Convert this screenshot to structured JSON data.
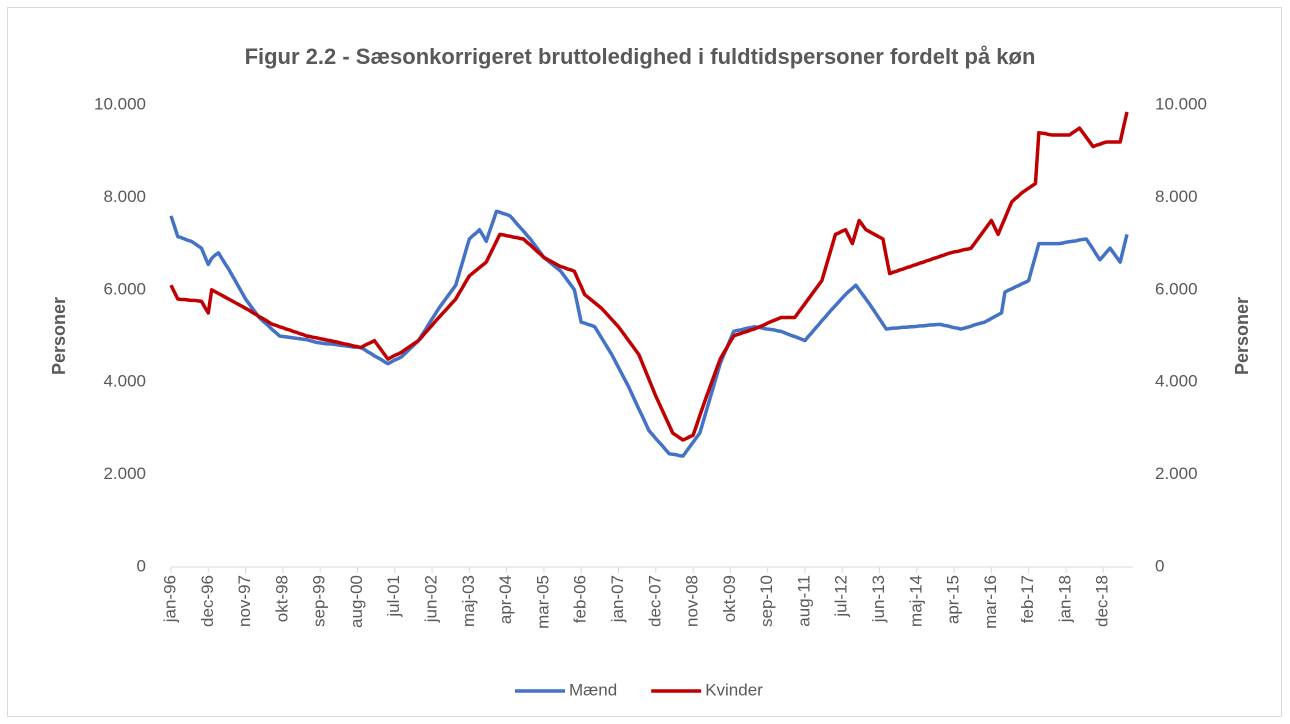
{
  "chart_data": {
    "type": "line",
    "title": "Figur 2.2 - Sæsonkorrigeret bruttoledighed i fuldtidspersoner fordelt på køn",
    "y_label": "Personer",
    "y2_label": "Personer",
    "categories": [
      "jan-96",
      null,
      null,
      null,
      null,
      null,
      null,
      null,
      null,
      null,
      null,
      "dec-96",
      null,
      null,
      null,
      null,
      null,
      null,
      null,
      null,
      null,
      null,
      "nov-97",
      null,
      null,
      null,
      null,
      null,
      null,
      null,
      null,
      null,
      null,
      "okt-98",
      null,
      null,
      null,
      null,
      null,
      null,
      null,
      null,
      null,
      null,
      "sep-99",
      null,
      null,
      null,
      null,
      null,
      null,
      null,
      null,
      null,
      null,
      "aug-00",
      null,
      null,
      null,
      null,
      null,
      null,
      null,
      null,
      null,
      null,
      "jul-01",
      null,
      null,
      null,
      null,
      null,
      null,
      null,
      null,
      null,
      null,
      "jun-02",
      null,
      null,
      null,
      null,
      null,
      null,
      null,
      null,
      null,
      null,
      "maj-03",
      null,
      null,
      null,
      null,
      null,
      null,
      null,
      null,
      null,
      null,
      "apr-04",
      null,
      null,
      null,
      null,
      null,
      null,
      null,
      null,
      null,
      null,
      "mar-05",
      null,
      null,
      null,
      null,
      null,
      null,
      null,
      null,
      null,
      null,
      "feb-06",
      null,
      null,
      null,
      null,
      null,
      null,
      null,
      null,
      null,
      null,
      "jan-07",
      null,
      null,
      null,
      null,
      null,
      null,
      null,
      null,
      null,
      null,
      "dec-07",
      null,
      null,
      null,
      null,
      null,
      null,
      null,
      null,
      null,
      null,
      "nov-08",
      null,
      null,
      null,
      null,
      null,
      null,
      null,
      null,
      null,
      null,
      "okt-09",
      null,
      null,
      null,
      null,
      null,
      null,
      null,
      null,
      null,
      null,
      "sep-10",
      null,
      null,
      null,
      null,
      null,
      null,
      null,
      null,
      null,
      null,
      "aug-11",
      null,
      null,
      null,
      null,
      null,
      null,
      null,
      null,
      null,
      null,
      "jul-12",
      null,
      null,
      null,
      null,
      null,
      null,
      null,
      null,
      null,
      null,
      "jun-13",
      null,
      null,
      null,
      null,
      null,
      null,
      null,
      null,
      null,
      null,
      "maj-14",
      null,
      null,
      null,
      null,
      null,
      null,
      null,
      null,
      null,
      null,
      "apr-15",
      null,
      null,
      null,
      null,
      null,
      null,
      null,
      null,
      null,
      null,
      "mar-16",
      null,
      null,
      null,
      null,
      null,
      null,
      null,
      null,
      null,
      null,
      "feb-17",
      null,
      null,
      null,
      null,
      null,
      null,
      null,
      null,
      null,
      null,
      "jan-18",
      null,
      null,
      null,
      null,
      null,
      null,
      null,
      null,
      null,
      null,
      "dec-18",
      null,
      null,
      null,
      null,
      null,
      null,
      null
    ],
    "series": [
      {
        "name": "Mænd",
        "color": "#4472c4",
        "values": [
          7600,
          7380,
          7150,
          7130,
          7100,
          7070,
          7050,
          7000,
          6950,
          6900,
          6720,
          6550,
          6680,
          6750,
          6800,
          6680,
          6560,
          6450,
          6320,
          6190,
          6060,
          5930,
          5800,
          5700,
          5600,
          5500,
          5400,
          5330,
          5270,
          5200,
          5130,
          5070,
          5000,
          4990,
          4980,
          4970,
          4960,
          4950,
          4940,
          4930,
          4920,
          4900,
          4880,
          4860,
          4850,
          4840,
          4830,
          4830,
          4820,
          4810,
          4800,
          4790,
          4780,
          4770,
          4760,
          4760,
          4750,
          4710,
          4660,
          4620,
          4570,
          4530,
          4490,
          4440,
          4400,
          4440,
          4480,
          4510,
          4550,
          4620,
          4690,
          4760,
          4830,
          4900,
          5020,
          5130,
          5250,
          5370,
          5480,
          5600,
          5700,
          5800,
          5900,
          6000,
          6100,
          6350,
          6600,
          6850,
          7100,
          7170,
          7230,
          7300,
          7180,
          7050,
          7270,
          7480,
          7700,
          7680,
          7650,
          7630,
          7600,
          7520,
          7430,
          7350,
          7270,
          7180,
          7100,
          7000,
          6900,
          6800,
          6700,
          6640,
          6580,
          6520,
          6460,
          6400,
          6300,
          6200,
          6100,
          6000,
          5650,
          5300,
          5280,
          5250,
          5230,
          5200,
          5080,
          4960,
          4840,
          4720,
          4600,
          4460,
          4320,
          4180,
          4040,
          3900,
          3740,
          3580,
          3420,
          3270,
          3110,
          2950,
          2870,
          2780,
          2700,
          2620,
          2530,
          2450,
          2440,
          2430,
          2410,
          2400,
          2500,
          2600,
          2700,
          2800,
          2900,
          3150,
          3400,
          3650,
          3900,
          4150,
          4400,
          4580,
          4750,
          4930,
          5100,
          5120,
          5130,
          5150,
          5170,
          5180,
          5200,
          5190,
          5180,
          5160,
          5150,
          5140,
          5130,
          5110,
          5100,
          5070,
          5040,
          5010,
          4990,
          4960,
          4930,
          4900,
          4990,
          5070,
          5160,
          5240,
          5330,
          5410,
          5500,
          5580,
          5660,
          5740,
          5820,
          5900,
          5970,
          6030,
          6100,
          6000,
          5900,
          5800,
          5700,
          5590,
          5480,
          5370,
          5260,
          5150,
          5160,
          5170,
          5170,
          5180,
          5190,
          5190,
          5200,
          5200,
          5210,
          5220,
          5220,
          5230,
          5240,
          5240,
          5250,
          5250,
          5230,
          5220,
          5200,
          5180,
          5170,
          5150,
          5170,
          5190,
          5210,
          5240,
          5260,
          5280,
          5300,
          5340,
          5380,
          5420,
          5460,
          5500,
          5950,
          5990,
          6020,
          6060,
          6090,
          6130,
          6160,
          6200,
          6470,
          6730,
          7000,
          7000,
          7000,
          7000,
          7000,
          7000,
          7000,
          7010,
          7030,
          7040,
          7050,
          7060,
          7080,
          7090,
          7100,
          6990,
          6880,
          6760,
          6650,
          6730,
          6820,
          6900,
          6800,
          6700,
          6600,
          6900,
          7200
        ]
      },
      {
        "name": "Kvinder",
        "color": "#c00000",
        "values": [
          6100,
          5950,
          5800,
          5790,
          5790,
          5780,
          5770,
          5770,
          5760,
          5750,
          5620,
          5500,
          6000,
          5960,
          5920,
          5880,
          5840,
          5800,
          5760,
          5720,
          5680,
          5640,
          5600,
          5560,
          5510,
          5470,
          5420,
          5380,
          5340,
          5290,
          5250,
          5230,
          5200,
          5180,
          5150,
          5130,
          5100,
          5080,
          5050,
          5030,
          5000,
          4990,
          4970,
          4960,
          4940,
          4930,
          4910,
          4900,
          4880,
          4870,
          4850,
          4830,
          4820,
          4800,
          4780,
          4770,
          4750,
          4790,
          4830,
          4860,
          4900,
          4800,
          4700,
          4600,
          4500,
          4540,
          4580,
          4610,
          4650,
          4700,
          4750,
          4800,
          4850,
          4900,
          4980,
          5070,
          5150,
          5230,
          5320,
          5400,
          5480,
          5560,
          5640,
          5720,
          5800,
          5930,
          6050,
          6180,
          6300,
          6360,
          6420,
          6480,
          6540,
          6600,
          6750,
          6900,
          7050,
          7200,
          7190,
          7170,
          7160,
          7140,
          7130,
          7110,
          7100,
          7030,
          6970,
          6900,
          6830,
          6770,
          6700,
          6660,
          6620,
          6580,
          6540,
          6500,
          6480,
          6450,
          6430,
          6400,
          6230,
          6070,
          5900,
          5840,
          5780,
          5720,
          5660,
          5600,
          5520,
          5440,
          5360,
          5280,
          5200,
          5100,
          5000,
          4900,
          4800,
          4700,
          4600,
          4420,
          4240,
          4060,
          3880,
          3700,
          3540,
          3380,
          3220,
          3060,
          2900,
          2850,
          2800,
          2750,
          2780,
          2820,
          2850,
          3060,
          3280,
          3490,
          3700,
          3900,
          4100,
          4300,
          4500,
          4630,
          4750,
          4880,
          5000,
          5030,
          5050,
          5080,
          5100,
          5130,
          5150,
          5180,
          5210,
          5240,
          5280,
          5310,
          5340,
          5370,
          5400,
          5400,
          5400,
          5400,
          5400,
          5500,
          5600,
          5700,
          5800,
          5900,
          6000,
          6100,
          6200,
          6450,
          6700,
          6950,
          7200,
          7230,
          7270,
          7300,
          7150,
          7000,
          7250,
          7500,
          7400,
          7300,
          7260,
          7220,
          7180,
          7140,
          7100,
          6720,
          6350,
          6380,
          6400,
          6430,
          6450,
          6480,
          6500,
          6530,
          6550,
          6580,
          6600,
          6630,
          6650,
          6680,
          6700,
          6730,
          6750,
          6780,
          6800,
          6820,
          6830,
          6850,
          6870,
          6880,
          6900,
          7000,
          7100,
          7200,
          7300,
          7400,
          7500,
          7350,
          7200,
          7380,
          7550,
          7730,
          7900,
          7970,
          8030,
          8100,
          8150,
          8200,
          8250,
          8300,
          9400,
          9390,
          9380,
          9360,
          9350,
          9350,
          9350,
          9350,
          9350,
          9350,
          9400,
          9450,
          9500,
          9400,
          9300,
          9200,
          9100,
          9130,
          9150,
          9180,
          9200,
          9200,
          9200,
          9200,
          9200,
          9530,
          9850
        ]
      }
    ],
    "ylim": [
      0,
      10000
    ],
    "yticks": [
      0,
      {
        "value": 2000,
        "label": "2.000"
      },
      {
        "value": 4000,
        "label": "4.000"
      },
      {
        "value": 6000,
        "label": "6.000"
      },
      {
        "value": 8000,
        "label": "8.000"
      },
      {
        "value": 10000,
        "label": "10.000"
      }
    ],
    "y2lim": [
      0,
      10000
    ],
    "y2ticks": [
      0,
      {
        "value": 2000,
        "label": "2.000"
      },
      {
        "value": 4000,
        "label": "4.000"
      },
      {
        "value": 6000,
        "label": "6.000"
      },
      {
        "value": 8000,
        "label": "8.000"
      },
      {
        "value": 10000,
        "label": "10.000"
      }
    ],
    "grid": false,
    "legend": "bottom"
  }
}
